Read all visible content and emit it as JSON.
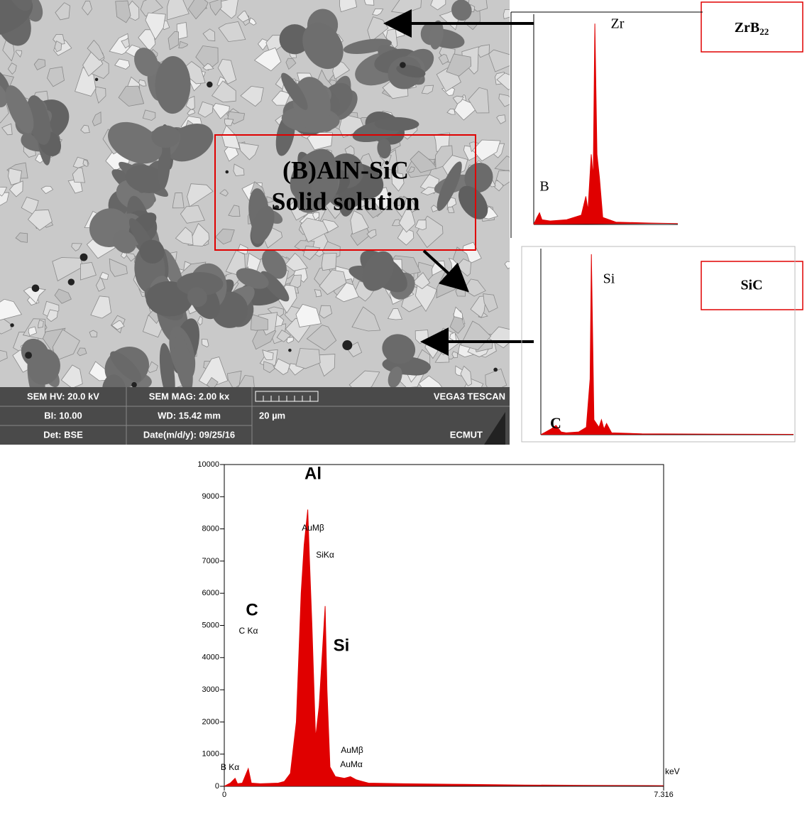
{
  "sem": {
    "info": [
      [
        "SEM HV: 20.0 kV",
        "SEM MAG: 2.00 kx",
        "VEGA3 TESCAN"
      ],
      [
        "BI: 10.00",
        "WD: 15.42 mm",
        "20 µm"
      ],
      [
        "Det: BSE",
        "Date(m/d/y): 09/25/16",
        "ECMUT"
      ]
    ],
    "overlay": [
      "(B)AlN-SiC",
      "Solid solution"
    ]
  },
  "labels": {
    "zrb2": {
      "base": "ZrB",
      "sub": "22"
    },
    "sic": "SiC"
  },
  "chart_data": [
    {
      "type": "area",
      "color": "#e00000",
      "xlim": [
        0,
        7.316
      ],
      "ylim": [
        0,
        10000
      ],
      "yticks": [
        0,
        1000,
        2000,
        3000,
        4000,
        5000,
        6000,
        7000,
        8000,
        9000,
        10000
      ],
      "xticks": [
        0,
        7.316
      ],
      "x_label": "keV",
      "x": [
        0,
        0.1,
        0.18,
        0.22,
        0.3,
        0.4,
        0.45,
        0.6,
        0.9,
        1.0,
        1.1,
        1.2,
        1.28,
        1.33,
        1.39,
        1.42,
        1.46,
        1.52,
        1.58,
        1.68,
        1.71,
        1.76,
        1.85,
        2.0,
        2.1,
        2.2,
        2.4,
        3.0,
        4.0,
        5.0,
        6.0,
        7.316
      ],
      "values": [
        0,
        100,
        250,
        80,
        100,
        550,
        100,
        80,
        100,
        150,
        400,
        2000,
        6000,
        7500,
        8600,
        7000,
        5000,
        1500,
        2500,
        5600,
        3000,
        600,
        300,
        250,
        300,
        200,
        100,
        80,
        60,
        40,
        30,
        20
      ],
      "annotations": [
        "Al",
        "AuMβ",
        "SiKα",
        "Si",
        "C",
        "C Kα",
        "B Kα",
        "AuMβ",
        "AuMα"
      ]
    },
    {
      "type": "area",
      "color": "#e00000",
      "xlim": [
        0,
        8.77
      ],
      "ylim": [
        0,
        9000
      ],
      "x": [
        0,
        0.2,
        0.35,
        0.5,
        1.0,
        2.0,
        2.9,
        3.17,
        3.3,
        3.5,
        3.62,
        3.72,
        3.85,
        4.0,
        4.2,
        5.0,
        7.0,
        8.77
      ],
      "values": [
        0,
        300,
        500,
        200,
        150,
        200,
        400,
        1200,
        600,
        3000,
        2000,
        8600,
        3000,
        2000,
        300,
        100,
        60,
        40
      ],
      "annotations": [
        "Zr",
        "B"
      ]
    },
    {
      "type": "area",
      "color": "#e00000",
      "xlim": [
        0,
        10
      ],
      "ylim": [
        0,
        10000
      ],
      "x": [
        0,
        0.2,
        0.4,
        0.6,
        0.8,
        1.0,
        1.5,
        1.8,
        1.95,
        2.0,
        2.1,
        2.3,
        2.4,
        2.5,
        2.6,
        2.8,
        4.0,
        7.0,
        10
      ],
      "values": [
        0,
        150,
        300,
        500,
        150,
        100,
        150,
        400,
        3000,
        9700,
        800,
        400,
        800,
        300,
        600,
        100,
        50,
        30,
        20
      ],
      "annotations": [
        "Si",
        "C"
      ]
    }
  ]
}
